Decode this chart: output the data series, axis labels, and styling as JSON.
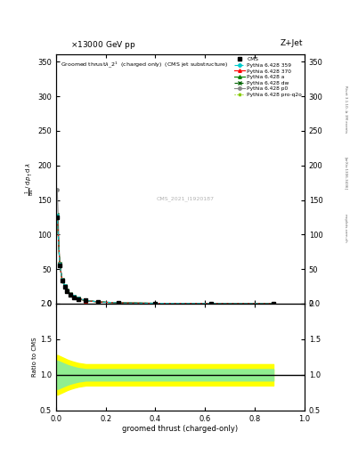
{
  "title_top": "13000 GeV pp",
  "title_right": "Z+Jet",
  "xlabel": "groomed thrust (charged-only)",
  "ylabel_ratio": "Ratio to CMS",
  "watermark": "CMS_2021_I1920187",
  "rivet_label": "Rivet 3.1.10, ≥ 3M events",
  "arxiv_label": "[arXiv:1306.3436]",
  "mcplots_label": "mcplots.cern.ch",
  "ylim_main": [
    0,
    360
  ],
  "ylim_ratio": [
    0.5,
    2.0
  ],
  "xlim": [
    0.0,
    1.0
  ],
  "yticks_main": [
    0,
    50,
    100,
    150,
    200,
    250,
    300,
    350
  ],
  "yticks_ratio": [
    0.5,
    1.0,
    1.5,
    2.0
  ],
  "x_bins": [
    0.0,
    0.01,
    0.02,
    0.03,
    0.04,
    0.05,
    0.065,
    0.08,
    0.1,
    0.14,
    0.2,
    0.3,
    0.5,
    0.75,
    1.0
  ],
  "cms_y": [
    125,
    56,
    33,
    25,
    18,
    13,
    9.5,
    7,
    4.5,
    2.5,
    1.2,
    0.55,
    0.2,
    0.05
  ],
  "p359_y": [
    128,
    57,
    34,
    25.5,
    18.5,
    13.5,
    9.8,
    7.2,
    4.6,
    2.6,
    1.25,
    0.57,
    0.21,
    0.055
  ],
  "p370_y": [
    127,
    56.5,
    33.5,
    25.2,
    18.2,
    13.2,
    9.6,
    7.0,
    4.4,
    2.45,
    1.22,
    0.54,
    0.2,
    0.052
  ],
  "pa_y": [
    126,
    56.2,
    33.2,
    25.0,
    18.0,
    13.0,
    9.4,
    6.9,
    4.35,
    2.42,
    1.2,
    0.53,
    0.195,
    0.05
  ],
  "pdw_y": [
    129,
    57.5,
    34.5,
    25.8,
    18.8,
    13.8,
    10.0,
    7.3,
    4.7,
    2.65,
    1.28,
    0.58,
    0.22,
    0.057
  ],
  "pp0_y": [
    165,
    58,
    35,
    26,
    19,
    14,
    10.2,
    7.4,
    4.8,
    2.7,
    1.3,
    0.59,
    0.23,
    0.058
  ],
  "pq2o_y": [
    127,
    56.8,
    33.8,
    25.3,
    18.3,
    13.3,
    9.7,
    7.1,
    4.5,
    2.5,
    1.23,
    0.56,
    0.21,
    0.053
  ],
  "band_yellow_lo": 0.85,
  "band_yellow_hi": 1.15,
  "band_green_lo": 0.92,
  "band_green_hi": 1.08,
  "styles": [
    {
      "label": "CMS",
      "color": "black",
      "marker": "s",
      "ls": "none",
      "lw": 0
    },
    {
      "label": "Pythia 6.428 359",
      "color": "#00cccc",
      "marker": "o",
      "ls": "--",
      "lw": 0.8
    },
    {
      "label": "Pythia 6.428 370",
      "color": "red",
      "marker": "^",
      "ls": "-",
      "lw": 0.8
    },
    {
      "label": "Pythia 6.428 a",
      "color": "green",
      "marker": "^",
      "ls": "-",
      "lw": 0.8
    },
    {
      "label": "Pythia 6.428 dw",
      "color": "darkgreen",
      "marker": "x",
      "ls": "--",
      "lw": 0.8
    },
    {
      "label": "Pythia 6.428 p0",
      "color": "#888888",
      "marker": "o",
      "ls": "-",
      "lw": 0.8
    },
    {
      "label": "Pythia 6.428 pro-q2o",
      "color": "#88cc00",
      "marker": "*",
      "ls": ":",
      "lw": 0.8
    }
  ]
}
